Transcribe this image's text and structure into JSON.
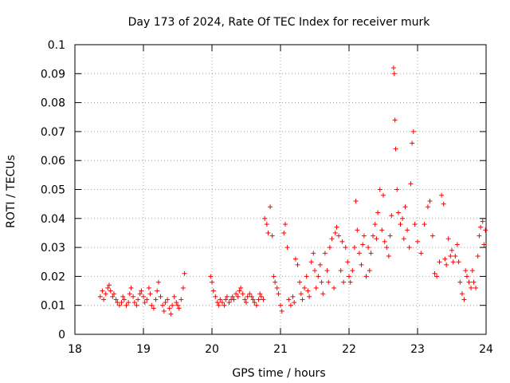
{
  "chart_data": {
    "type": "scatter",
    "title": "Day 173 of 2024, Rate Of TEC Index for receiver murk",
    "xlabel": "GPS time / hours",
    "ylabel": "ROTI / TECUs",
    "xlim": [
      18,
      24
    ],
    "ylim": [
      0,
      0.1
    ],
    "xticks": [
      "18",
      "19",
      "20",
      "21",
      "22",
      "23",
      "24"
    ],
    "yticks": [
      "0",
      "0.01",
      "0.02",
      "0.03",
      "0.04",
      "0.05",
      "0.06",
      "0.07",
      "0.08",
      "0.09",
      "0.1"
    ],
    "grid": true,
    "marker": "+",
    "color": "#ff0000",
    "series": [
      {
        "points": [
          [
            18.37,
            0.013
          ],
          [
            18.4,
            0.015
          ],
          [
            18.42,
            0.012
          ],
          [
            18.45,
            0.014
          ],
          [
            18.48,
            0.016
          ],
          [
            18.5,
            0.017
          ],
          [
            18.52,
            0.015
          ],
          [
            18.55,
            0.013
          ],
          [
            18.57,
            0.014
          ],
          [
            18.6,
            0.012
          ],
          [
            18.62,
            0.011
          ],
          [
            18.65,
            0.01
          ],
          [
            18.68,
            0.011
          ],
          [
            18.7,
            0.013
          ],
          [
            18.72,
            0.012
          ],
          [
            18.75,
            0.01
          ],
          [
            18.78,
            0.011
          ],
          [
            18.8,
            0.014
          ],
          [
            18.82,
            0.016
          ],
          [
            18.85,
            0.013
          ],
          [
            18.87,
            0.011
          ],
          [
            18.9,
            0.01
          ],
          [
            18.92,
            0.012
          ],
          [
            18.95,
            0.014
          ],
          [
            18.97,
            0.015
          ],
          [
            19.0,
            0.013
          ],
          [
            19.02,
            0.011
          ],
          [
            19.05,
            0.012
          ],
          [
            19.08,
            0.016
          ],
          [
            19.1,
            0.014
          ],
          [
            19.12,
            0.01
          ],
          [
            19.15,
            0.009
          ],
          [
            19.18,
            0.012
          ],
          [
            19.2,
            0.015
          ],
          [
            19.22,
            0.018
          ],
          [
            19.25,
            0.013
          ],
          [
            19.28,
            0.01
          ],
          [
            19.3,
            0.008
          ],
          [
            19.32,
            0.011
          ],
          [
            19.35,
            0.012
          ],
          [
            19.38,
            0.009
          ],
          [
            19.4,
            0.007
          ],
          [
            19.42,
            0.01
          ],
          [
            19.45,
            0.013
          ],
          [
            19.48,
            0.011
          ],
          [
            19.5,
            0.01
          ],
          [
            19.52,
            0.009
          ],
          [
            19.55,
            0.012
          ],
          [
            19.58,
            0.016
          ],
          [
            19.6,
            0.021
          ],
          [
            19.98,
            0.02
          ],
          [
            20.0,
            0.018
          ],
          [
            20.02,
            0.015
          ],
          [
            20.05,
            0.013
          ],
          [
            20.08,
            0.011
          ],
          [
            20.1,
            0.01
          ],
          [
            20.12,
            0.012
          ],
          [
            20.15,
            0.011
          ],
          [
            20.18,
            0.01
          ],
          [
            20.2,
            0.012
          ],
          [
            20.22,
            0.013
          ],
          [
            20.25,
            0.011
          ],
          [
            20.28,
            0.012
          ],
          [
            20.3,
            0.013
          ],
          [
            20.32,
            0.012
          ],
          [
            20.35,
            0.014
          ],
          [
            20.38,
            0.013
          ],
          [
            20.4,
            0.015
          ],
          [
            20.42,
            0.016
          ],
          [
            20.45,
            0.014
          ],
          [
            20.48,
            0.012
          ],
          [
            20.5,
            0.011
          ],
          [
            20.52,
            0.013
          ],
          [
            20.55,
            0.014
          ],
          [
            20.58,
            0.013
          ],
          [
            20.6,
            0.012
          ],
          [
            20.62,
            0.011
          ],
          [
            20.65,
            0.01
          ],
          [
            20.68,
            0.012
          ],
          [
            20.7,
            0.014
          ],
          [
            20.72,
            0.013
          ],
          [
            20.75,
            0.012
          ],
          [
            20.77,
            0.04
          ],
          [
            20.8,
            0.038
          ],
          [
            20.82,
            0.035
          ],
          [
            20.85,
            0.044
          ],
          [
            20.88,
            0.034
          ],
          [
            20.9,
            0.02
          ],
          [
            20.92,
            0.018
          ],
          [
            20.95,
            0.016
          ],
          [
            20.97,
            0.014
          ],
          [
            21.0,
            0.01
          ],
          [
            21.02,
            0.008
          ],
          [
            21.05,
            0.035
          ],
          [
            21.07,
            0.038
          ],
          [
            21.1,
            0.03
          ],
          [
            21.12,
            0.012
          ],
          [
            21.15,
            0.01
          ],
          [
            21.18,
            0.013
          ],
          [
            21.2,
            0.011
          ],
          [
            21.22,
            0.026
          ],
          [
            21.25,
            0.024
          ],
          [
            21.28,
            0.018
          ],
          [
            21.3,
            0.014
          ],
          [
            21.32,
            0.012
          ],
          [
            21.35,
            0.016
          ],
          [
            21.38,
            0.02
          ],
          [
            21.4,
            0.015
          ],
          [
            21.42,
            0.013
          ],
          [
            21.45,
            0.025
          ],
          [
            21.48,
            0.028
          ],
          [
            21.5,
            0.022
          ],
          [
            21.52,
            0.016
          ],
          [
            21.55,
            0.02
          ],
          [
            21.58,
            0.024
          ],
          [
            21.6,
            0.018
          ],
          [
            21.62,
            0.014
          ],
          [
            21.65,
            0.028
          ],
          [
            21.68,
            0.022
          ],
          [
            21.7,
            0.018
          ],
          [
            21.72,
            0.03
          ],
          [
            21.75,
            0.033
          ],
          [
            21.78,
            0.016
          ],
          [
            21.8,
            0.035
          ],
          [
            21.82,
            0.037
          ],
          [
            21.85,
            0.034
          ],
          [
            21.88,
            0.022
          ],
          [
            21.9,
            0.032
          ],
          [
            21.92,
            0.018
          ],
          [
            21.95,
            0.03
          ],
          [
            21.98,
            0.025
          ],
          [
            22.0,
            0.02
          ],
          [
            22.02,
            0.018
          ],
          [
            22.05,
            0.022
          ],
          [
            22.08,
            0.03
          ],
          [
            22.1,
            0.046
          ],
          [
            22.12,
            0.036
          ],
          [
            22.15,
            0.028
          ],
          [
            22.18,
            0.024
          ],
          [
            22.2,
            0.031
          ],
          [
            22.22,
            0.034
          ],
          [
            22.25,
            0.02
          ],
          [
            22.28,
            0.03
          ],
          [
            22.3,
            0.022
          ],
          [
            22.32,
            0.028
          ],
          [
            22.35,
            0.034
          ],
          [
            22.38,
            0.038
          ],
          [
            22.4,
            0.033
          ],
          [
            22.42,
            0.042
          ],
          [
            22.45,
            0.05
          ],
          [
            22.48,
            0.036
          ],
          [
            22.5,
            0.048
          ],
          [
            22.52,
            0.032
          ],
          [
            22.55,
            0.03
          ],
          [
            22.58,
            0.027
          ],
          [
            22.6,
            0.034
          ],
          [
            22.62,
            0.041
          ],
          [
            22.65,
            0.092
          ],
          [
            22.66,
            0.09
          ],
          [
            22.67,
            0.074
          ],
          [
            22.68,
            0.064
          ],
          [
            22.7,
            0.05
          ],
          [
            22.72,
            0.042
          ],
          [
            22.75,
            0.038
          ],
          [
            22.78,
            0.04
          ],
          [
            22.8,
            0.033
          ],
          [
            22.82,
            0.044
          ],
          [
            22.85,
            0.036
          ],
          [
            22.88,
            0.03
          ],
          [
            22.9,
            0.052
          ],
          [
            22.92,
            0.066
          ],
          [
            22.94,
            0.07
          ],
          [
            22.96,
            0.038
          ],
          [
            23.0,
            0.032
          ],
          [
            23.05,
            0.028
          ],
          [
            23.1,
            0.038
          ],
          [
            23.15,
            0.044
          ],
          [
            23.18,
            0.046
          ],
          [
            23.22,
            0.034
          ],
          [
            23.25,
            0.021
          ],
          [
            23.28,
            0.02
          ],
          [
            23.32,
            0.025
          ],
          [
            23.35,
            0.048
          ],
          [
            23.38,
            0.045
          ],
          [
            23.4,
            0.026
          ],
          [
            23.42,
            0.024
          ],
          [
            23.45,
            0.033
          ],
          [
            23.48,
            0.027
          ],
          [
            23.5,
            0.029
          ],
          [
            23.52,
            0.025
          ],
          [
            23.55,
            0.027
          ],
          [
            23.58,
            0.031
          ],
          [
            23.6,
            0.025
          ],
          [
            23.62,
            0.018
          ],
          [
            23.65,
            0.014
          ],
          [
            23.68,
            0.012
          ],
          [
            23.7,
            0.022
          ],
          [
            23.72,
            0.02
          ],
          [
            23.75,
            0.018
          ],
          [
            23.78,
            0.016
          ],
          [
            23.8,
            0.022
          ],
          [
            23.82,
            0.018
          ],
          [
            23.85,
            0.016
          ],
          [
            23.88,
            0.027
          ],
          [
            23.9,
            0.034
          ],
          [
            23.92,
            0.037
          ],
          [
            23.95,
            0.039
          ],
          [
            23.97,
            0.031
          ],
          [
            23.99,
            0.036
          ]
        ]
      }
    ]
  }
}
